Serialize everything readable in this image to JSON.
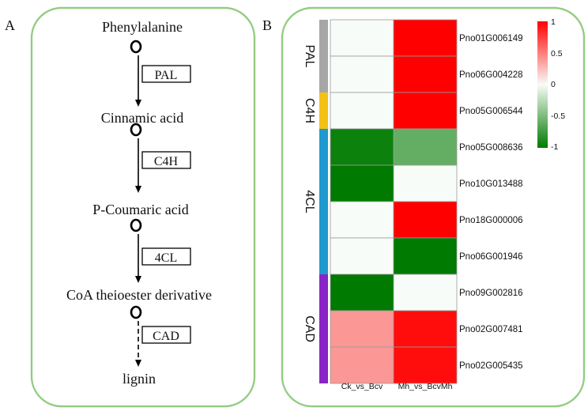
{
  "panel_a": {
    "letter": "A",
    "compounds": [
      "Phenylalanine",
      "Cinnamic acid",
      "P-Coumaric acid",
      "CoA theioester derivative",
      "lignin"
    ],
    "enzymes": [
      "PAL",
      "C4H",
      "4CL",
      "CAD"
    ]
  },
  "panel_b": {
    "letter": "B",
    "columns": [
      "Ck_vs_Bcv",
      "Mh_vs_BcvMh"
    ],
    "genes": [
      "Pno01G006149",
      "Pno06G004228",
      "Pno05G006544",
      "Pno05G008636",
      "Pno10G013488",
      "Pno18G000006",
      "Pno06G001946",
      "Pno09G002816",
      "Pno02G007481",
      "Pno02G005435"
    ],
    "groups": [
      {
        "label": "PAL",
        "rows": 2,
        "color": "#a6a6a6"
      },
      {
        "label": "C4H",
        "rows": 1,
        "color": "#f5c016"
      },
      {
        "label": "4CL",
        "rows": 4,
        "color": "#1e9ad0"
      },
      {
        "label": "CAD",
        "rows": 3,
        "color": "#8a23c6"
      }
    ],
    "legend_ticks": [
      "1",
      "0.5",
      "0",
      "-0.5",
      "-1"
    ]
  },
  "chart_data": {
    "type": "heatmap",
    "x": [
      "Ck_vs_Bcv",
      "Mh_vs_BcvMh"
    ],
    "y": [
      "Pno01G006149",
      "Pno06G004228",
      "Pno05G006544",
      "Pno05G008636",
      "Pno10G013488",
      "Pno18G000006",
      "Pno06G001946",
      "Pno09G002816",
      "Pno02G007481",
      "Pno02G005435"
    ],
    "values": [
      [
        0,
        1
      ],
      [
        0,
        1
      ],
      [
        0,
        1
      ],
      [
        -0.95,
        -0.6
      ],
      [
        -1,
        0
      ],
      [
        0,
        1
      ],
      [
        0,
        -1
      ],
      [
        -1,
        0
      ],
      [
        0.4,
        0.95
      ],
      [
        0.4,
        0.95
      ]
    ],
    "zlim": [
      -1,
      1
    ],
    "colors": {
      "low": "#007a00",
      "mid": "#f8fcf8",
      "high": "#ff0000"
    }
  }
}
